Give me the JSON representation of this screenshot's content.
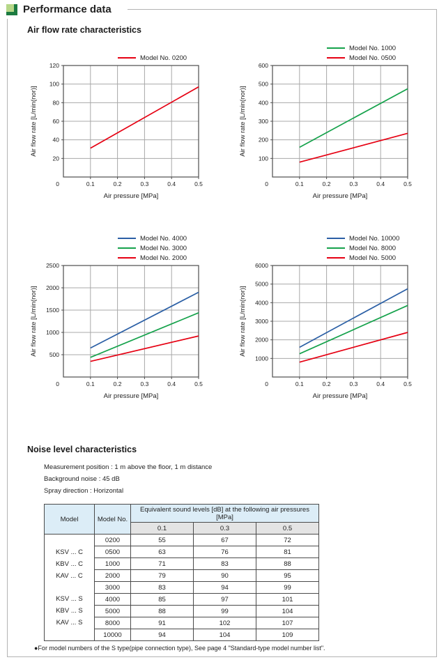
{
  "header": {
    "title": "Performance data"
  },
  "sections": {
    "airflow": {
      "heading": "Air flow rate characteristics"
    },
    "noise": {
      "heading": "Noise level characteristics",
      "notes": [
        "Measurement position : 1 m above the floor, 1 m distance",
        "Background noise : 45 dB",
        "Spray direction : Horizontal"
      ],
      "footnote": "●For model numbers of the S type(pipe connection type), See page 4 \"Standard-type model number list\"."
    }
  },
  "chart_data": [
    {
      "type": "line",
      "xlabel": "Air pressure [MPa]",
      "ylabel": "Air flow rate [L/min(nor)]",
      "xlim": [
        0,
        0.5
      ],
      "ylim": [
        0,
        120
      ],
      "xticks": [
        "0.1",
        "0.2",
        "0.3",
        "0.4",
        "0.5"
      ],
      "yticks": [
        20,
        40,
        60,
        80,
        100,
        120
      ],
      "origin_tick": "0",
      "grid": true,
      "legend_position": "top-right",
      "x": [
        0.1,
        0.5
      ],
      "series": [
        {
          "name": "Model No. 0200",
          "color": "#e60012",
          "values": [
            31,
            97
          ]
        }
      ]
    },
    {
      "type": "line",
      "xlabel": "Air pressure [MPa]",
      "ylabel": "Air flow rate [L/min(nor)]",
      "xlim": [
        0,
        0.5
      ],
      "ylim": [
        0,
        600
      ],
      "xticks": [
        "0.1",
        "0.2",
        "0.3",
        "0.4",
        "0.5"
      ],
      "yticks": [
        100,
        200,
        300,
        400,
        500,
        600
      ],
      "origin_tick": "0",
      "grid": true,
      "legend_position": "top-right",
      "x": [
        0.1,
        0.5
      ],
      "series": [
        {
          "name": "Model No. 1000",
          "color": "#15a24b",
          "values": [
            160,
            475
          ]
        },
        {
          "name": "Model No. 0500",
          "color": "#e60012",
          "values": [
            80,
            235
          ]
        }
      ]
    },
    {
      "type": "line",
      "xlabel": "Air pressure [MPa]",
      "ylabel": "Air flow rate [L/min(nor)]",
      "xlim": [
        0,
        0.5
      ],
      "ylim": [
        0,
        2500
      ],
      "xticks": [
        "0.1",
        "0.2",
        "0.3",
        "0.4",
        "0.5"
      ],
      "yticks": [
        500,
        1000,
        1500,
        2000,
        2500
      ],
      "origin_tick": "0",
      "grid": true,
      "legend_position": "top-right",
      "x": [
        0.1,
        0.5
      ],
      "series": [
        {
          "name": "Model No. 4000",
          "color": "#2b5fa5",
          "values": [
            650,
            1900
          ]
        },
        {
          "name": "Model No. 3000",
          "color": "#15a24b",
          "values": [
            440,
            1440
          ]
        },
        {
          "name": "Model No. 2000",
          "color": "#e60012",
          "values": [
            350,
            920
          ]
        }
      ]
    },
    {
      "type": "line",
      "xlabel": "Air pressure [MPa]",
      "ylabel": "Air flow rate [L/min(nor)]",
      "xlim": [
        0,
        0.5
      ],
      "ylim": [
        0,
        6000
      ],
      "xticks": [
        "0.1",
        "0.2",
        "0.3",
        "0.4",
        "0.5"
      ],
      "yticks": [
        1000,
        2000,
        3000,
        4000,
        5000,
        6000
      ],
      "origin_tick": "0",
      "grid": true,
      "legend_position": "top-right",
      "x": [
        0.1,
        0.5
      ],
      "series": [
        {
          "name": "Model No. 10000",
          "color": "#2b5fa5",
          "values": [
            1600,
            4750
          ]
        },
        {
          "name": "Model No. 8000",
          "color": "#15a24b",
          "values": [
            1250,
            3850
          ]
        },
        {
          "name": "Model No. 5000",
          "color": "#e60012",
          "values": [
            800,
            2400
          ]
        }
      ]
    }
  ],
  "noise_table": {
    "col_model": "Model",
    "col_model_no": "Model No.",
    "col_levels": "Equivalent sound levels [dB] at the following air pressures [MPa]",
    "pressures": [
      "0.1",
      "0.3",
      "0.5"
    ],
    "model_groups": [
      [
        "KSV ... C",
        "KBV ... C",
        "KAV ... C"
      ],
      [
        "KSV ... S",
        "KBV ... S",
        "KAV ... S"
      ]
    ],
    "rows": [
      {
        "model_no": "0200",
        "values": [
          "55",
          "67",
          "72"
        ]
      },
      {
        "model_no": "0500",
        "values": [
          "63",
          "76",
          "81"
        ]
      },
      {
        "model_no": "1000",
        "values": [
          "71",
          "83",
          "88"
        ]
      },
      {
        "model_no": "2000",
        "values": [
          "79",
          "90",
          "95"
        ]
      },
      {
        "model_no": "3000",
        "values": [
          "83",
          "94",
          "99"
        ]
      },
      {
        "model_no": "4000",
        "values": [
          "85",
          "97",
          "101"
        ]
      },
      {
        "model_no": "5000",
        "values": [
          "88",
          "99",
          "104"
        ]
      },
      {
        "model_no": "8000",
        "values": [
          "91",
          "102",
          "107"
        ]
      },
      {
        "model_no": "10000",
        "values": [
          "94",
          "104",
          "109"
        ]
      }
    ]
  },
  "colors": {
    "red": "#e60012",
    "green": "#15a24b",
    "blue": "#2b5fa5",
    "table_header_blue": "#dcedf7",
    "table_subheader_gray": "#e4e4e4",
    "icon_light_green": "#b6d788",
    "icon_dark_green": "#1c7b41",
    "box_border": "#b3b3b3",
    "grid_line": "#a8a8a8",
    "plot_border": "#4d4d4d"
  }
}
